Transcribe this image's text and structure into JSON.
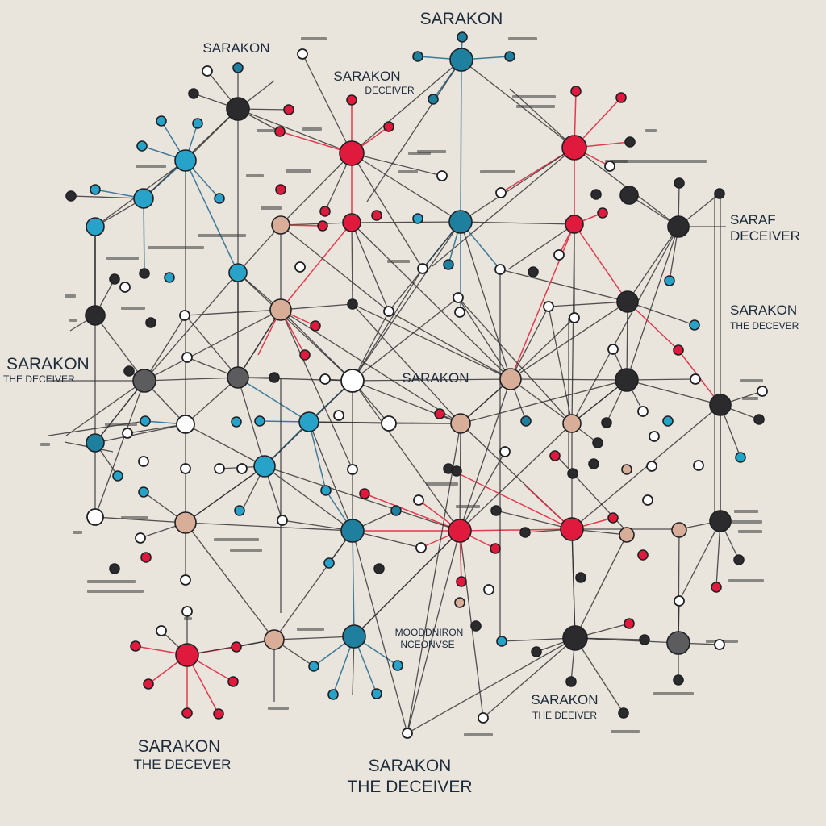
{
  "colors": {
    "background": "#e9e4dc",
    "dark": "#2b2b2e",
    "teal": "#1f7f9e",
    "cyan": "#27a3c9",
    "red": "#e01a3c",
    "tan": "#d9ae98",
    "white": "#ffffff",
    "gray": "#5c5c5e",
    "line_dark": "#2a2a2c",
    "line_blue": "#2b6f92",
    "line_red": "#e0283f"
  },
  "labels": {
    "top_center": "SARAKON",
    "top_left": "SARAKON",
    "upper_mid_name": "SARAKON",
    "upper_mid_title": "DECEIVER",
    "right_top_name": "SARAF",
    "right_top_title": "DECEIVER",
    "right_mid_name": "SARAKON",
    "right_mid_title": "THE DECEVER",
    "left_mid_name": "SARAKON",
    "left_mid_title": "THE DECEIVER",
    "center": "SARAKON",
    "bottom_right_name": "SARAKON",
    "bottom_right_title": "THE DEEIVER",
    "bottom_left_name": "SARAKON",
    "bottom_left_title": "THE DECEVER",
    "bottom_center_name": "SARAKON",
    "bottom_center_title": "THE DECEIVER",
    "lower_center_line1": "MOODDNIRON",
    "lower_center_line2": "NCEONVSE"
  }
}
